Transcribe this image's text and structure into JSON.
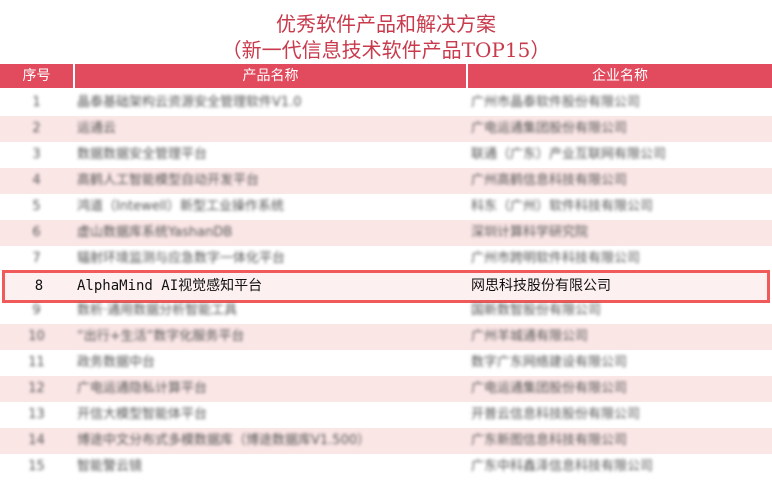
{
  "title": "优秀软件产品和解决方案",
  "subtitle": "（新一代信息技术软件产品TOP15）",
  "headers": {
    "no": "序号",
    "product": "产品名称",
    "company": "企业名称"
  },
  "accent": "#e14b5d",
  "rows": [
    {
      "no": "1",
      "product": "晶泰基础架构云资源安全管理软件V1.0",
      "company": "广州市晶泰软件股份有限公司"
    },
    {
      "no": "2",
      "product": "运通云",
      "company": "广电运通集团股份有限公司"
    },
    {
      "no": "3",
      "product": "数据数据安全管理平台",
      "company": "联通（广东）产业互联网有限公司"
    },
    {
      "no": "4",
      "product": "高鹤人工智能模型自动开发平台",
      "company": "广州高鹤信息科技有限公司"
    },
    {
      "no": "5",
      "product": "鸿道（Intewell）新型工业操作系统",
      "company": "科东（广州）软件科技有限公司"
    },
    {
      "no": "6",
      "product": "虚山数据库系统YashanDB",
      "company": "深圳计算科学研究院"
    },
    {
      "no": "7",
      "product": "辐射环境监测与应急数字一体化平台",
      "company": "广州市跨明软件科技有限公司"
    },
    {
      "no": "8",
      "product": "AlphaMind AI视觉感知平台",
      "company": "网思科技股份有限公司"
    },
    {
      "no": "9",
      "product": "数析·通用数据分析智能工具",
      "company": "国新数智股份有限公司"
    },
    {
      "no": "10",
      "product": "“出行+生活”数字化服务平台",
      "company": "广州羊城通有限公司"
    },
    {
      "no": "11",
      "product": "政务数据中台",
      "company": "数字广东网络建设有限公司"
    },
    {
      "no": "12",
      "product": "广电运通隐私计算平台",
      "company": "广电运通集团股份有限公司"
    },
    {
      "no": "13",
      "product": "开信大模型智能体平台",
      "company": "开普云信息科技股份有限公司"
    },
    {
      "no": "14",
      "product": "博途中文分布式多模数据库（博途数据库V1.500）",
      "company": "广东新图信息科技有限公司"
    },
    {
      "no": "15",
      "product": "智能警云镜",
      "company": "广东中科鑫泽信息科技有限公司"
    }
  ]
}
